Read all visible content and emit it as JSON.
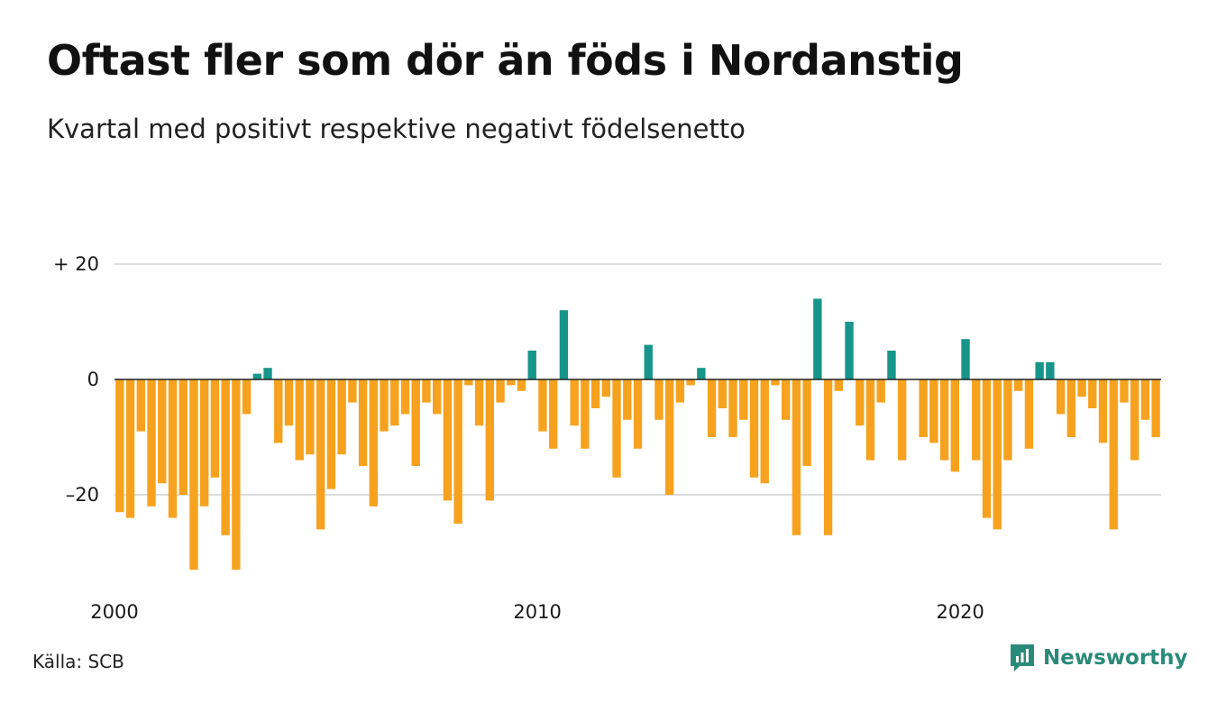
{
  "title": "Oftast fler som dör än föds i Nordanstig",
  "subtitle": "Kvartal med positivt respektive negativt födelsenetto",
  "source": "Källa: SCB",
  "brand": {
    "name": "Newsworthy",
    "icon": "newsworthy-logo-icon"
  },
  "colors": {
    "positive": "#17958a",
    "negative": "#f6a21e",
    "grid": "#dddddd",
    "zero_line": "#222222"
  },
  "chart_data": {
    "type": "bar",
    "title": "Oftast fler som dör än föds i Nordanstig",
    "subtitle": "Kvartal med positivt respektive negativt födelsenetto",
    "xlabel": "",
    "ylabel": "",
    "ylim": [
      -35,
      22
    ],
    "y_ticks": [
      {
        "value": 20,
        "label": "+ 20"
      },
      {
        "value": 0,
        "label": "0"
      },
      {
        "value": -20,
        "label": "–20"
      }
    ],
    "x_ticks": [
      {
        "value": 2000,
        "label": "2000"
      },
      {
        "value": 2010,
        "label": "2010"
      },
      {
        "value": 2020,
        "label": "2020"
      }
    ],
    "x_start_year": 2000,
    "grid": true,
    "legend": "none",
    "values": [
      -23,
      -24,
      -9,
      -22,
      -18,
      -24,
      -20,
      -33,
      -22,
      -17,
      -27,
      -33,
      -6,
      1,
      2,
      -11,
      -8,
      -14,
      -13,
      -26,
      -19,
      -13,
      -4,
      -15,
      -22,
      -9,
      -8,
      -6,
      -15,
      -4,
      -6,
      -21,
      -25,
      -1,
      -8,
      -21,
      -4,
      -1,
      -2,
      5,
      -9,
      -12,
      12,
      -8,
      -12,
      -5,
      -3,
      -17,
      -7,
      -12,
      6,
      -7,
      -20,
      -4,
      -1,
      2,
      -10,
      -5,
      -10,
      -7,
      -17,
      -18,
      -1,
      -7,
      -27,
      -15,
      14,
      -27,
      -2,
      10,
      -8,
      -14,
      -4,
      5,
      -14,
      0,
      -10,
      -11,
      -14,
      -16,
      7,
      -14,
      -24,
      -26,
      -14,
      -2,
      -12,
      3,
      3,
      -6,
      -10,
      -3,
      -5,
      -11,
      -26,
      -4,
      -14,
      -7,
      -10
    ]
  }
}
